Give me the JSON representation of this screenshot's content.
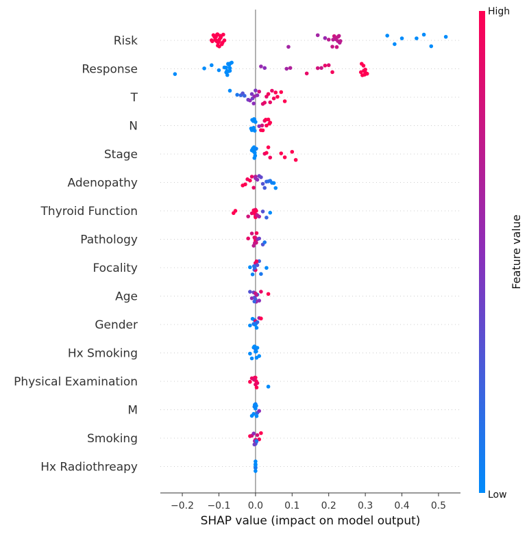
{
  "chart_data": {
    "type": "scatter",
    "subtype": "shap-beeswarm",
    "xlabel": "SHAP value (impact on model output)",
    "xlim": [
      -0.26,
      0.56
    ],
    "x_ticks": [
      -0.2,
      -0.1,
      0.0,
      0.1,
      0.2,
      0.3,
      0.4,
      0.5
    ],
    "x_tick_labels": [
      "−0.2",
      "−0.1",
      "0.0",
      "0.1",
      "0.2",
      "0.3",
      "0.4",
      "0.5"
    ],
    "features": [
      {
        "name": "Risk",
        "points": [
          [
            -0.12,
            1
          ],
          [
            -0.118,
            1
          ],
          [
            -0.115,
            1
          ],
          [
            -0.112,
            1
          ],
          [
            -0.11,
            1
          ],
          [
            -0.108,
            1
          ],
          [
            -0.105,
            1
          ],
          [
            -0.103,
            1
          ],
          [
            -0.1,
            1
          ],
          [
            -0.098,
            1
          ],
          [
            -0.095,
            1
          ],
          [
            -0.092,
            1
          ],
          [
            -0.09,
            1
          ],
          [
            -0.088,
            1
          ],
          [
            -0.085,
            1
          ],
          [
            -0.108,
            1
          ],
          [
            -0.102,
            1
          ],
          [
            -0.097,
            1
          ],
          [
            -0.106,
            1
          ],
          [
            -0.1,
            1
          ],
          [
            -0.094,
            1
          ],
          [
            -0.104,
            1
          ],
          [
            -0.099,
            1
          ],
          [
            0.09,
            0.6
          ],
          [
            0.17,
            0.6
          ],
          [
            0.2,
            0.7
          ],
          [
            0.21,
            0.75
          ],
          [
            0.215,
            0.8
          ],
          [
            0.22,
            0.7
          ],
          [
            0.225,
            0.72
          ],
          [
            0.23,
            0.68
          ],
          [
            0.218,
            0.74
          ],
          [
            0.228,
            0.7
          ],
          [
            0.222,
            0.76
          ],
          [
            0.212,
            0.69
          ],
          [
            0.226,
            0.73
          ],
          [
            0.232,
            0.71
          ],
          [
            0.19,
            0.55
          ],
          [
            0.36,
            0
          ],
          [
            0.38,
            0
          ],
          [
            0.4,
            0
          ],
          [
            0.44,
            0
          ],
          [
            0.46,
            0
          ],
          [
            0.48,
            0
          ],
          [
            0.52,
            0
          ]
        ]
      },
      {
        "name": "Response",
        "points": [
          [
            -0.22,
            0
          ],
          [
            -0.14,
            0
          ],
          [
            -0.12,
            0
          ],
          [
            -0.1,
            0
          ],
          [
            -0.085,
            0
          ],
          [
            -0.08,
            0
          ],
          [
            -0.078,
            0
          ],
          [
            -0.075,
            0
          ],
          [
            -0.072,
            0
          ],
          [
            -0.07,
            0
          ],
          [
            -0.068,
            0
          ],
          [
            -0.065,
            0
          ],
          [
            -0.08,
            0
          ],
          [
            -0.074,
            0
          ],
          [
            -0.07,
            0
          ],
          [
            -0.077,
            0
          ],
          [
            0.015,
            0.55
          ],
          [
            0.025,
            0.5
          ],
          [
            0.085,
            0.6
          ],
          [
            0.095,
            0.65
          ],
          [
            0.14,
            0.9
          ],
          [
            0.17,
            0.8
          ],
          [
            0.18,
            0.75
          ],
          [
            0.19,
            0.9
          ],
          [
            0.2,
            0.85
          ],
          [
            0.21,
            0.95
          ],
          [
            0.29,
            1
          ],
          [
            0.295,
            1
          ],
          [
            0.3,
            1
          ],
          [
            0.305,
            1
          ],
          [
            0.292,
            1
          ],
          [
            0.298,
            1
          ],
          [
            0.302,
            1
          ],
          [
            0.288,
            1
          ],
          [
            0.296,
            1
          ],
          [
            0.3,
            1
          ]
        ]
      },
      {
        "name": "T",
        "points": [
          [
            -0.07,
            0
          ],
          [
            -0.05,
            0.1
          ],
          [
            -0.04,
            0.2
          ],
          [
            -0.035,
            0.3
          ],
          [
            -0.03,
            0.2
          ],
          [
            -0.02,
            0.4
          ],
          [
            -0.015,
            0.5
          ],
          [
            -0.01,
            0.45
          ],
          [
            -0.005,
            0.5
          ],
          [
            0.0,
            0.45
          ],
          [
            0.005,
            0.5
          ],
          [
            -0.008,
            0.4
          ],
          [
            -0.003,
            0.55
          ],
          [
            0.01,
            0.8
          ],
          [
            0.02,
            0.85
          ],
          [
            0.03,
            0.9
          ],
          [
            0.04,
            0.9
          ],
          [
            0.05,
            0.95
          ],
          [
            0.06,
            1
          ],
          [
            0.07,
            1
          ],
          [
            0.08,
            1
          ],
          [
            0.025,
            0.9
          ],
          [
            0.035,
            0.95
          ],
          [
            0.045,
            0.9
          ],
          [
            0.055,
            1
          ]
        ]
      },
      {
        "name": "N",
        "points": [
          [
            -0.012,
            0
          ],
          [
            -0.008,
            0
          ],
          [
            -0.005,
            0
          ],
          [
            -0.002,
            0
          ],
          [
            0.0,
            0
          ],
          [
            -0.01,
            0
          ],
          [
            -0.006,
            0
          ],
          [
            -0.003,
            0
          ],
          [
            -0.009,
            0
          ],
          [
            -0.004,
            0
          ],
          [
            0.01,
            0.5
          ],
          [
            0.015,
            1
          ],
          [
            0.02,
            1
          ],
          [
            0.025,
            0.9
          ],
          [
            0.03,
            1
          ],
          [
            0.035,
            1
          ],
          [
            0.04,
            1
          ],
          [
            0.018,
            0.8
          ],
          [
            0.028,
            1
          ],
          [
            0.038,
            1
          ]
        ]
      },
      {
        "name": "Stage",
        "points": [
          [
            -0.01,
            0
          ],
          [
            -0.006,
            0
          ],
          [
            -0.003,
            0
          ],
          [
            0.0,
            0
          ],
          [
            -0.008,
            0
          ],
          [
            -0.004,
            0
          ],
          [
            -0.001,
            0
          ],
          [
            -0.007,
            0
          ],
          [
            -0.002,
            0
          ],
          [
            0.002,
            0.05
          ],
          [
            0.025,
            0.9
          ],
          [
            0.03,
            1
          ],
          [
            0.035,
            1
          ],
          [
            0.04,
            0.95
          ],
          [
            0.07,
            1
          ],
          [
            0.08,
            1
          ],
          [
            0.1,
            1
          ],
          [
            0.11,
            1
          ]
        ]
      },
      {
        "name": "Adenopathy",
        "points": [
          [
            -0.035,
            1
          ],
          [
            -0.028,
            1
          ],
          [
            -0.022,
            0.95
          ],
          [
            -0.015,
            1
          ],
          [
            -0.01,
            0.9
          ],
          [
            -0.005,
            0.9
          ],
          [
            0.0,
            0.6
          ],
          [
            0.0,
            0.7
          ],
          [
            0.0,
            0.55
          ],
          [
            0.005,
            0.5
          ],
          [
            0.01,
            0.4
          ],
          [
            0.02,
            0.3
          ],
          [
            0.03,
            0.2
          ],
          [
            0.04,
            0.1
          ],
          [
            0.05,
            0
          ],
          [
            0.055,
            0
          ],
          [
            0.045,
            0.05
          ],
          [
            0.035,
            0.15
          ],
          [
            0.015,
            0.35
          ],
          [
            0.025,
            0.25
          ]
        ]
      },
      {
        "name": "Thyroid Function",
        "points": [
          [
            -0.06,
            1
          ],
          [
            -0.055,
            1
          ],
          [
            -0.02,
            0.8
          ],
          [
            -0.01,
            0.9
          ],
          [
            -0.005,
            1
          ],
          [
            0.0,
            1
          ],
          [
            0.0,
            0.95
          ],
          [
            0.0,
            0.9
          ],
          [
            0.002,
            1
          ],
          [
            -0.002,
            1
          ],
          [
            0.003,
            0.85
          ],
          [
            0.01,
            0.6
          ],
          [
            0.02,
            0.3
          ],
          [
            0.03,
            0.2
          ],
          [
            0.04,
            0
          ],
          [
            0.005,
            0.7
          ]
        ]
      },
      {
        "name": "Pathology",
        "points": [
          [
            -0.02,
            0.9
          ],
          [
            -0.01,
            0.8
          ],
          [
            -0.005,
            0.7
          ],
          [
            0.0,
            0.9
          ],
          [
            0.0,
            1
          ],
          [
            0.0,
            0.85
          ],
          [
            0.002,
            0.8
          ],
          [
            -0.002,
            0.75
          ],
          [
            0.005,
            0.6
          ],
          [
            0.01,
            0.4
          ],
          [
            0.02,
            0.3
          ],
          [
            0.025,
            0.1
          ],
          [
            0.003,
            0.95
          ],
          [
            -0.003,
            0.9
          ]
        ]
      },
      {
        "name": "Focality",
        "points": [
          [
            -0.015,
            0
          ],
          [
            -0.008,
            0.05
          ],
          [
            -0.003,
            0.1
          ],
          [
            0.0,
            0.1
          ],
          [
            0.0,
            0.9
          ],
          [
            0.0,
            1
          ],
          [
            0.002,
            0.8
          ],
          [
            -0.002,
            0.2
          ],
          [
            0.005,
            0.3
          ],
          [
            0.01,
            0.2
          ],
          [
            0.015,
            0.1
          ],
          [
            0.03,
            0
          ],
          [
            0.003,
            0.95
          ],
          [
            -0.004,
            0.15
          ]
        ]
      },
      {
        "name": "Age",
        "points": [
          [
            -0.015,
            0.3
          ],
          [
            -0.01,
            0.5
          ],
          [
            -0.005,
            0.4
          ],
          [
            0.0,
            0.2
          ],
          [
            0.0,
            0.8
          ],
          [
            0.002,
            0.6
          ],
          [
            -0.002,
            0.3
          ],
          [
            0.005,
            0.1
          ],
          [
            0.01,
            0.5
          ],
          [
            0.015,
            0.9
          ],
          [
            0.035,
            1
          ],
          [
            0.003,
            0.7
          ],
          [
            -0.003,
            0.2
          ]
        ]
      },
      {
        "name": "Gender",
        "points": [
          [
            -0.015,
            0
          ],
          [
            -0.008,
            0
          ],
          [
            -0.003,
            0.05
          ],
          [
            0.0,
            0
          ],
          [
            0.0,
            0.9
          ],
          [
            0.002,
            0.1
          ],
          [
            -0.002,
            0
          ],
          [
            0.005,
            0.2
          ],
          [
            0.01,
            0.6
          ],
          [
            0.015,
            1
          ],
          [
            0.003,
            0
          ],
          [
            -0.005,
            0.1
          ]
        ]
      },
      {
        "name": "Hx Smoking",
        "points": [
          [
            -0.015,
            0
          ],
          [
            -0.01,
            0
          ],
          [
            -0.005,
            0
          ],
          [
            0.0,
            0
          ],
          [
            0.0,
            0.1
          ],
          [
            0.002,
            0
          ],
          [
            -0.002,
            0.1
          ],
          [
            0.005,
            0
          ],
          [
            0.01,
            0
          ],
          [
            0.003,
            0
          ],
          [
            -0.003,
            0
          ]
        ]
      },
      {
        "name": "Physical Examination",
        "points": [
          [
            -0.015,
            1
          ],
          [
            -0.01,
            0.9
          ],
          [
            -0.005,
            1
          ],
          [
            0.0,
            1
          ],
          [
            0.0,
            0.9
          ],
          [
            0.002,
            1
          ],
          [
            -0.002,
            0.95
          ],
          [
            0.005,
            0.9
          ],
          [
            0.035,
            0
          ],
          [
            0.003,
            1
          ],
          [
            -0.004,
            0.85
          ]
        ]
      },
      {
        "name": "M",
        "points": [
          [
            -0.01,
            0
          ],
          [
            -0.005,
            0
          ],
          [
            0.0,
            0
          ],
          [
            0.0,
            0.1
          ],
          [
            0.002,
            0
          ],
          [
            -0.002,
            0
          ],
          [
            0.005,
            0.2
          ],
          [
            0.01,
            0.5
          ],
          [
            0.003,
            0
          ],
          [
            -0.003,
            0.05
          ]
        ]
      },
      {
        "name": "Smoking",
        "points": [
          [
            -0.015,
            1
          ],
          [
            -0.01,
            0.8
          ],
          [
            -0.005,
            0.5
          ],
          [
            0.0,
            0.2
          ],
          [
            0.0,
            0.9
          ],
          [
            0.002,
            0.3
          ],
          [
            -0.002,
            0.6
          ],
          [
            0.005,
            0.8
          ],
          [
            0.01,
            1
          ],
          [
            0.015,
            1
          ],
          [
            0.003,
            0.1
          ],
          [
            -0.003,
            0.4
          ]
        ]
      },
      {
        "name": "Hx Radiothreapy",
        "points": [
          [
            0.0,
            0
          ],
          [
            0.0,
            0.05
          ],
          [
            0.0,
            0
          ],
          [
            0.0,
            0
          ],
          [
            0.0,
            0.1
          ],
          [
            0.0,
            0
          ],
          [
            0.0,
            0
          ],
          [
            0.0,
            0
          ]
        ]
      }
    ],
    "colorbar": {
      "title": "Feature value",
      "high_label": "High",
      "low_label": "Low",
      "low_color": "#008bfb",
      "mid_color": "#8c2eb9",
      "high_color": "#ff0052"
    }
  }
}
